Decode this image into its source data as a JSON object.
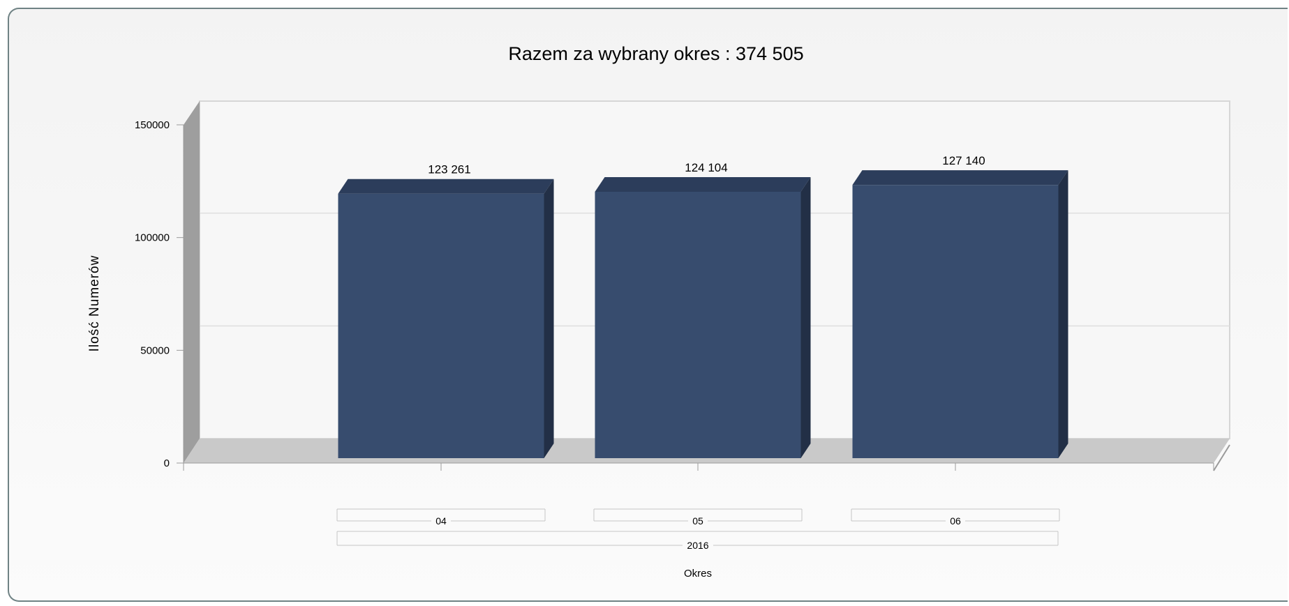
{
  "chart_data": {
    "type": "bar",
    "title": "Razem za wybrany okres : 374 505",
    "ylabel": "Ilość Numerów",
    "xlabel": "Okres",
    "categories": [
      "04",
      "05",
      "06"
    ],
    "group_label": "2016",
    "values": [
      123261,
      124104,
      127140
    ],
    "value_labels": [
      "123 261",
      "124 104",
      "127 140"
    ],
    "ylim": [
      0,
      150000
    ],
    "yticks": [
      0,
      50000,
      100000,
      150000
    ],
    "ytick_labels": [
      "0",
      "50000",
      "100000",
      "150000"
    ],
    "grid": true,
    "legend": "none",
    "colors": {
      "bar_front": "#374c6e",
      "bar_top": "#2c3d5b",
      "bar_side": "#222f46",
      "wall": "#9e9e9e",
      "floor": "#c9c9c9"
    }
  }
}
